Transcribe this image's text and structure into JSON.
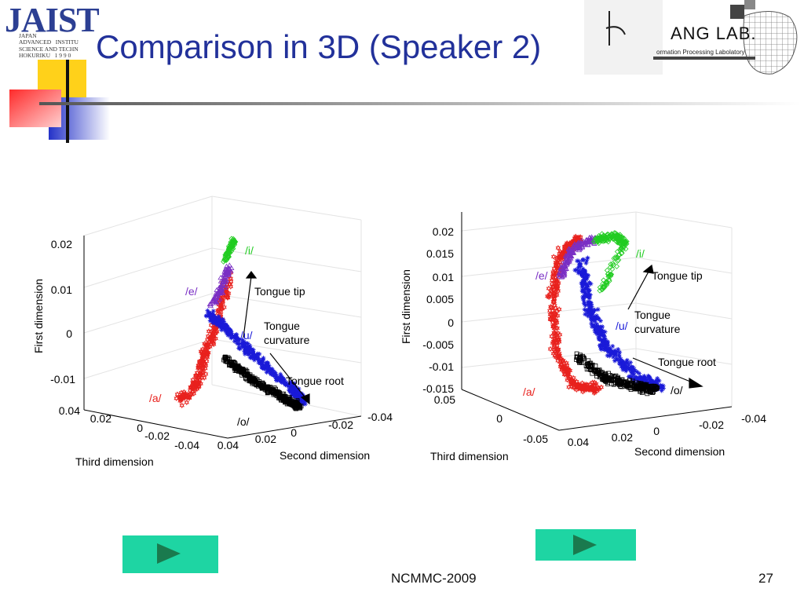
{
  "slide": {
    "title": "Comparison in 3D (Speaker 2)",
    "footer": "NCMMC-2009",
    "page": "27"
  },
  "logo_left": {
    "name": "JAIST",
    "subtitle": "JAPAN\nADVANCED   INSTITU\nSCIENCE AND TECHN\nHOKURIKU   1 9 9 0"
  },
  "logo_right": {
    "name": "ANG LAB.",
    "subtitle": "ormation Processing Labolatory"
  },
  "colors": {
    "title": "#22319a",
    "a": "#e8211d",
    "e": "#7a2fc4",
    "i": "#22cc22",
    "u": "#1a1ad8",
    "o": "#000000",
    "button": "#1ed5a3",
    "button_arrow": "#1a7a4e"
  },
  "nav": {
    "left_button": "play-icon",
    "right_button": "play-icon"
  },
  "chart_data": [
    {
      "type": "scatter",
      "title": "",
      "zlabel": "First dimension",
      "xlabel": "Second dimension",
      "ylabel": "Third dimension",
      "z_ticks": [
        "0.02",
        "0.01",
        "0",
        "-0.01"
      ],
      "x_ticks": [
        "-0.04",
        "-0.02",
        "0",
        "0.02",
        "0.04"
      ],
      "y_ticks": [
        "0.04",
        "0.02",
        "0",
        "-0.02",
        "-0.04"
      ],
      "zlim": [
        -0.015,
        0.025
      ],
      "series": [
        {
          "name": "/i/",
          "marker": "diamond",
          "color": "#22cc22"
        },
        {
          "name": "/e/",
          "marker": "triangle",
          "color": "#7a2fc4"
        },
        {
          "name": "/u/",
          "marker": "asterisk",
          "color": "#1a1ad8"
        },
        {
          "name": "/o/",
          "marker": "square",
          "color": "#000000"
        },
        {
          "name": "/a/",
          "marker": "hexagram",
          "color": "#e8211d"
        }
      ],
      "annotations": [
        "Tongue tip",
        "Tongue\ncurvature",
        "Tongue root"
      ]
    },
    {
      "type": "scatter",
      "title": "",
      "zlabel": "First dimension",
      "xlabel": "Second dimension",
      "ylabel": "Third dimension",
      "z_ticks": [
        "0.02",
        "0.015",
        "0.01",
        "0.005",
        "0",
        "-0.005",
        "-0.01",
        "-0.015"
      ],
      "x_ticks": [
        "-0.04",
        "-0.02",
        "0",
        "0.02",
        "0.04"
      ],
      "y_ticks": [
        "0.05",
        "0",
        "-0.05"
      ],
      "zlim": [
        -0.015,
        0.02
      ],
      "series": [
        {
          "name": "/i/",
          "marker": "diamond",
          "color": "#22cc22"
        },
        {
          "name": "/e/",
          "marker": "triangle",
          "color": "#7a2fc4"
        },
        {
          "name": "/u/",
          "marker": "asterisk",
          "color": "#1a1ad8"
        },
        {
          "name": "/o/",
          "marker": "square",
          "color": "#000000"
        },
        {
          "name": "/a/",
          "marker": "hexagram",
          "color": "#e8211d"
        }
      ],
      "annotations": [
        "Tongue tip",
        "Tongue\ncurvature",
        "Tongue root"
      ]
    }
  ]
}
